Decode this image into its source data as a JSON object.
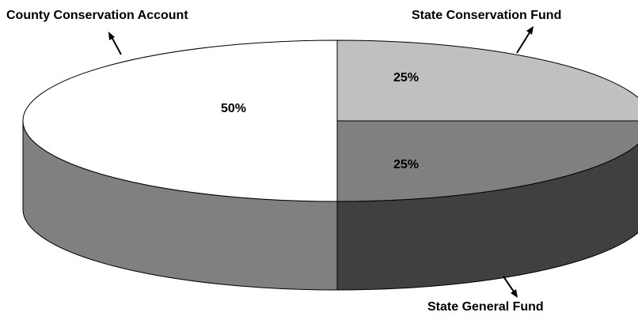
{
  "chart_data": {
    "type": "pie",
    "slices": [
      {
        "label": "County Conservation Account",
        "value": 50,
        "value_label": "50%",
        "top_color": "#ffffff",
        "side_color": "#808080"
      },
      {
        "label": "State Conservation Fund",
        "value": 25,
        "value_label": "25%",
        "top_color": "#c0c0c0",
        "side_color": "#a0a0a0"
      },
      {
        "label": "State General Fund",
        "value": 25,
        "value_label": "25%",
        "top_color": "#808080",
        "side_color": "#404040"
      }
    ],
    "style": "3d",
    "outline_color": "#000000"
  }
}
